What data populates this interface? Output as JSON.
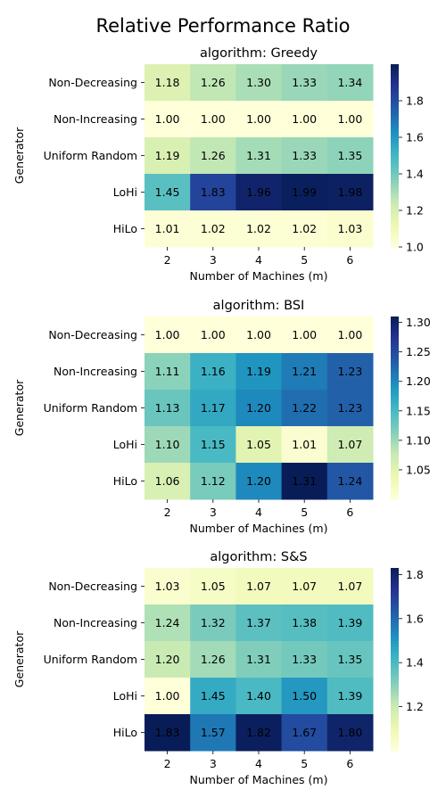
{
  "figure": {
    "title": "Relative Performance Ratio"
  },
  "chart_data": [
    {
      "type": "heatmap",
      "title": "algorithm: Greedy",
      "xlabel": "Number of Machines (m)",
      "ylabel": "Generator",
      "x": [
        "2",
        "3",
        "4",
        "5",
        "6"
      ],
      "y": [
        "Non-Decreasing",
        "Non-Increasing",
        "Uniform Random",
        "LoHi",
        "HiLo"
      ],
      "values": [
        [
          1.18,
          1.26,
          1.3,
          1.33,
          1.34
        ],
        [
          1.0,
          1.0,
          1.0,
          1.0,
          1.0
        ],
        [
          1.19,
          1.26,
          1.31,
          1.33,
          1.35
        ],
        [
          1.45,
          1.83,
          1.96,
          1.99,
          1.98
        ],
        [
          1.01,
          1.02,
          1.02,
          1.02,
          1.03
        ]
      ],
      "colorbar": {
        "range": [
          1.0,
          2.0
        ],
        "ticks": [
          "1.0",
          "1.2",
          "1.4",
          "1.6",
          "1.8"
        ],
        "tick_values": [
          1.0,
          1.2,
          1.4,
          1.6,
          1.8
        ]
      },
      "colormap": "YlGnBu"
    },
    {
      "type": "heatmap",
      "title": "algorithm: BSI",
      "xlabel": "Number of Machines (m)",
      "ylabel": "Generator",
      "x": [
        "2",
        "3",
        "4",
        "5",
        "6"
      ],
      "y": [
        "Non-Decreasing",
        "Non-Increasing",
        "Uniform Random",
        "LoHi",
        "HiLo"
      ],
      "values": [
        [
          1.0,
          1.0,
          1.0,
          1.0,
          1.0
        ],
        [
          1.11,
          1.16,
          1.19,
          1.21,
          1.23
        ],
        [
          1.13,
          1.17,
          1.2,
          1.22,
          1.23
        ],
        [
          1.1,
          1.15,
          1.05,
          1.01,
          1.07
        ],
        [
          1.06,
          1.12,
          1.2,
          1.31,
          1.24
        ]
      ],
      "colorbar": {
        "range": [
          1.0,
          1.31
        ],
        "ticks": [
          "1.05",
          "1.10",
          "1.15",
          "1.20",
          "1.25",
          "1.30"
        ],
        "tick_values": [
          1.05,
          1.1,
          1.15,
          1.2,
          1.25,
          1.3
        ]
      },
      "colormap": "YlGnBu"
    },
    {
      "type": "heatmap",
      "title": "algorithm: S&S",
      "xlabel": "Number of Machines (m)",
      "ylabel": "Generator",
      "x": [
        "2",
        "3",
        "4",
        "5",
        "6"
      ],
      "y": [
        "Non-Decreasing",
        "Non-Increasing",
        "Uniform Random",
        "LoHi",
        "HiLo"
      ],
      "values": [
        [
          1.03,
          1.05,
          1.07,
          1.07,
          1.07
        ],
        [
          1.24,
          1.32,
          1.37,
          1.38,
          1.39
        ],
        [
          1.2,
          1.26,
          1.31,
          1.33,
          1.35
        ],
        [
          1.0,
          1.45,
          1.4,
          1.5,
          1.39
        ],
        [
          1.83,
          1.57,
          1.82,
          1.67,
          1.8
        ]
      ],
      "colorbar": {
        "range": [
          1.0,
          1.83
        ],
        "ticks": [
          "1.2",
          "1.4",
          "1.6",
          "1.8"
        ],
        "tick_values": [
          1.2,
          1.4,
          1.6,
          1.8
        ]
      },
      "colormap": "YlGnBu"
    }
  ]
}
